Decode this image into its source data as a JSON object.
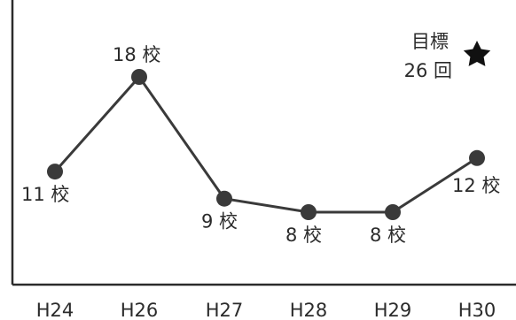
{
  "chart_data": {
    "type": "line",
    "categories": [
      "H24",
      "H26",
      "H27",
      "H28",
      "H29",
      "H30"
    ],
    "values": [
      11,
      18,
      9,
      8,
      8,
      12
    ],
    "data_labels": [
      "11 校",
      "18 校",
      "9 校",
      "8 校",
      "8 校",
      "12 校"
    ],
    "annotation": {
      "line1": "目標",
      "line2": "26 回",
      "star_icon": "star-icon"
    },
    "colors": {
      "line": "#3a3a3a",
      "marker": "#3a3a3a",
      "axis": "#2b2b2b",
      "text": "#2b2b2b"
    },
    "grid": false,
    "legend": "none"
  }
}
